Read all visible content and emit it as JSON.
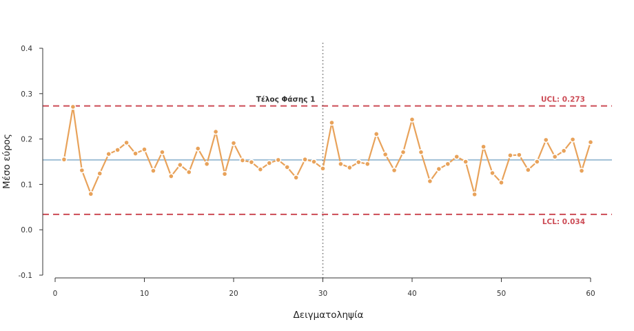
{
  "chart_data": {
    "type": "line",
    "title": "",
    "xlabel": "Δειγματοληψία",
    "ylabel": "Μέσο εύρος",
    "xlim": [
      0,
      60
    ],
    "ylim": [
      -0.1,
      0.4
    ],
    "x_ticks": [
      0,
      10,
      20,
      30,
      40,
      50,
      60
    ],
    "y_ticks": [
      -0.1,
      0.0,
      0.1,
      0.2,
      0.3,
      0.4
    ],
    "grid": false,
    "series": [
      {
        "x": [
          1,
          2,
          3,
          4,
          5,
          6,
          7,
          8,
          9,
          10,
          11,
          12,
          13,
          14,
          15,
          16,
          17,
          18,
          19,
          20,
          21,
          22,
          23,
          24,
          25,
          26,
          27,
          28,
          29,
          30,
          31,
          32,
          33,
          34,
          35,
          36,
          37,
          38,
          39,
          40,
          41,
          42,
          43,
          44,
          45,
          46,
          47,
          48,
          49,
          50,
          51,
          52,
          53,
          54,
          55,
          56,
          57,
          58,
          59,
          60
        ],
        "values": [
          0.155,
          0.271,
          0.131,
          0.079,
          0.124,
          0.167,
          0.176,
          0.192,
          0.168,
          0.177,
          0.13,
          0.171,
          0.118,
          0.143,
          0.127,
          0.179,
          0.145,
          0.216,
          0.123,
          0.191,
          0.153,
          0.149,
          0.133,
          0.147,
          0.154,
          0.138,
          0.115,
          0.155,
          0.15,
          0.135,
          0.236,
          0.145,
          0.137,
          0.149,
          0.145,
          0.211,
          0.166,
          0.131,
          0.171,
          0.243,
          0.171,
          0.107,
          0.134,
          0.145,
          0.161,
          0.15,
          0.078,
          0.183,
          0.125,
          0.104,
          0.164,
          0.165,
          0.132,
          0.15,
          0.198,
          0.161,
          0.174,
          0.199,
          0.13,
          0.193
        ],
        "color": "#e8a25a"
      }
    ],
    "center_line": {
      "value": 0.154,
      "color": "#9fbfd6"
    },
    "ucl": {
      "value": 0.273,
      "label": "UCL: 0.273",
      "color": "#cc4b55"
    },
    "lcl": {
      "value": 0.034,
      "label": "LCL: 0.034",
      "color": "#cc4b55"
    },
    "phase_line": {
      "x": 30,
      "label": "Τέλος Φάσης 1",
      "color": "#777777"
    }
  }
}
